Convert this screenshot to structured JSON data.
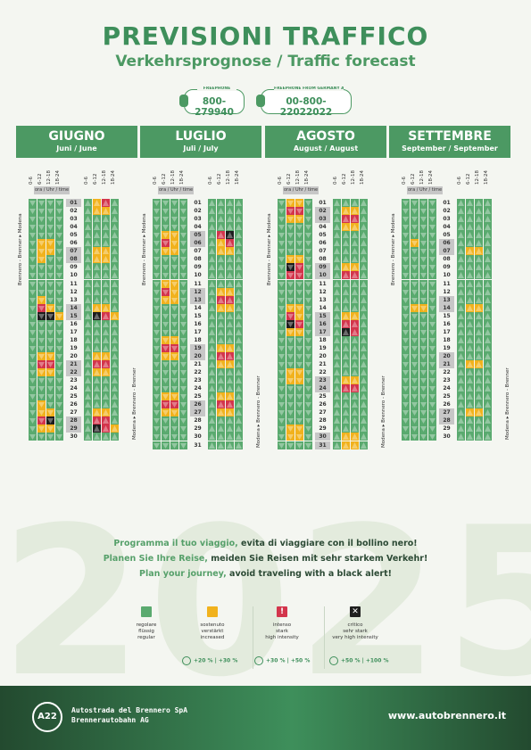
{
  "title": "PREVISIONI TRAFFICO",
  "subtitle": "Verkehrsprognose / Traffic forecast",
  "phones": [
    {
      "label": "FREEPHONE",
      "number": "800-279940"
    },
    {
      "label": "FREEPHONE FROM GERMANY AUSTRIA NETHERLANDS",
      "number": "00-800-22022022"
    }
  ],
  "watermark": "2025",
  "time_slots": [
    "0-6",
    "6-12",
    "12-18",
    "18-24"
  ],
  "ora_label": "ora / Uhr / time",
  "direction_south": "Brennero - Brenner ▸ Modena",
  "direction_north": "Modena ▸ Brennero - Brenner",
  "months": [
    {
      "name": "GIUGNO",
      "sub": "Juni / June",
      "highlight": [
        1,
        7,
        8,
        14,
        15,
        21,
        22,
        28,
        29
      ],
      "south": [
        "gggg",
        "gggg",
        "gggg",
        "gggg",
        "gggg",
        "gyyg",
        "gyyg",
        "gygg",
        "gggg",
        "gggg",
        "gggg",
        "gggg",
        "gygg",
        "gryg",
        "gbby",
        "gggg",
        "gggg",
        "gggg",
        "gggg",
        "gyyg",
        "grrg",
        "gyyg",
        "gggg",
        "gggg",
        "gggg",
        "gygg",
        "gyyg",
        "grbg",
        "gyyg",
        "gggg"
      ],
      "north": [
        "gyrg",
        "gyyg",
        "gggg",
        "gggg",
        "gggg",
        "gggg",
        "gyyg",
        "gyyg",
        "gggg",
        "gggg",
        "gggg",
        "gggg",
        "gggg",
        "gyyg",
        "gbry",
        "gggg",
        "gggg",
        "gggg",
        "gggg",
        "gyyg",
        "grrg",
        "gyyg",
        "gggg",
        "gggg",
        "gggg",
        "gggg",
        "gyyg",
        "grrg",
        "gbry",
        "gggg"
      ]
    },
    {
      "name": "LUGLIO",
      "sub": "Juli / July",
      "highlight": [
        5,
        6,
        12,
        13,
        19,
        20,
        26,
        27
      ],
      "south": [
        "gggg",
        "gggg",
        "gggg",
        "gggg",
        "gyyg",
        "gryg",
        "gyyg",
        "gggg",
        "gggg",
        "gggg",
        "gyyg",
        "gryg",
        "gyyg",
        "gggg",
        "gggg",
        "gggg",
        "gggg",
        "gyyg",
        "grrg",
        "gyyg",
        "gggg",
        "gggg",
        "gggg",
        "gggg",
        "gyyg",
        "grrg",
        "gyyg",
        "gggg",
        "gggg",
        "gggg",
        "gggg"
      ],
      "north": [
        "gggg",
        "gggg",
        "gggg",
        "gggg",
        "grbg",
        "gyrg",
        "gyyg",
        "gggg",
        "gggg",
        "gggg",
        "gggg",
        "gyyg",
        "grrg",
        "gyyg",
        "gggg",
        "gggg",
        "gggg",
        "gggg",
        "gyyg",
        "grrg",
        "gyyg",
        "gggg",
        "gggg",
        "gggg",
        "gyyg",
        "grrg",
        "gyyg",
        "gggg",
        "gggg",
        "gggg",
        "gggg"
      ]
    },
    {
      "name": "AGOSTO",
      "sub": "August / August",
      "highlight": [
        2,
        3,
        9,
        10,
        15,
        16,
        17,
        23,
        24,
        30,
        31
      ],
      "south": [
        "gyyg",
        "grrg",
        "gyyg",
        "gggg",
        "gggg",
        "gggg",
        "gggg",
        "gyyg",
        "gbrg",
        "grrg",
        "gggg",
        "gggg",
        "gggg",
        "gyyg",
        "gryg",
        "gbrg",
        "gyyg",
        "gggg",
        "gggg",
        "gggg",
        "gggg",
        "gyyg",
        "gyyg",
        "gggg",
        "gggg",
        "gggg",
        "gggg",
        "gggg",
        "gyyg",
        "gyyg",
        "gggg"
      ],
      "north": [
        "gggg",
        "gyyg",
        "grrg",
        "gyyg",
        "gggg",
        "gggg",
        "gggg",
        "gggg",
        "gyyg",
        "grrg",
        "gggg",
        "gggg",
        "gggg",
        "gggg",
        "gyyg",
        "grrg",
        "gbrg",
        "gggg",
        "gggg",
        "gggg",
        "gggg",
        "gggg",
        "gyyg",
        "grrg",
        "gggg",
        "gggg",
        "gggg",
        "gggg",
        "gggg",
        "gyyg",
        "gyyg"
      ]
    },
    {
      "name": "SETTEMBRE",
      "sub": "September / September",
      "highlight": [
        6,
        7,
        13,
        14,
        20,
        21,
        27,
        28
      ],
      "south": [
        "gggg",
        "gggg",
        "gggg",
        "gggg",
        "gggg",
        "gygg",
        "gggg",
        "gggg",
        "gggg",
        "gggg",
        "gggg",
        "gggg",
        "gggg",
        "gyyg",
        "gggg",
        "gggg",
        "gggg",
        "gggg",
        "gggg",
        "gggg",
        "gggg",
        "gggg",
        "gggg",
        "gggg",
        "gggg",
        "gggg",
        "gggg",
        "gggg",
        "gggg",
        "gggg"
      ],
      "north": [
        "gggg",
        "gggg",
        "gggg",
        "gggg",
        "gggg",
        "gggg",
        "gyyg",
        "gggg",
        "gggg",
        "gggg",
        "gggg",
        "gggg",
        "gggg",
        "gyyg",
        "gggg",
        "gggg",
        "gggg",
        "gggg",
        "gggg",
        "gggg",
        "gyyg",
        "gggg",
        "gggg",
        "gggg",
        "gggg",
        "gggg",
        "gyyg",
        "gggg",
        "gggg",
        "gggg"
      ]
    }
  ],
  "messages": [
    {
      "highlight": "Programma il tuo viaggio,",
      "rest": " evita di viaggiare con il bollino nero!"
    },
    {
      "highlight": "Planen Sie Ihre Reise,",
      "rest": " meiden Sie Reisen mit sehr starkem Verkehr!"
    },
    {
      "highlight": "Plan your journey,",
      "rest": " avoid traveling with a black alert!"
    }
  ],
  "legend": [
    {
      "key": "regular",
      "color": "#5aaa6f",
      "symbol": "",
      "lines": [
        "regolare",
        "flüssig",
        "regular"
      ]
    },
    {
      "key": "increased",
      "color": "#f1b21d",
      "symbol": "",
      "lines": [
        "sostenuto",
        "verstärkt",
        "increased"
      ]
    },
    {
      "key": "high",
      "color": "#d3354c",
      "symbol": "!",
      "lines": [
        "intenso",
        "stark",
        "high intensity"
      ]
    },
    {
      "key": "critical",
      "color": "#1e1e1e",
      "symbol": "✕",
      "lines": [
        "critico",
        "sehr stark",
        "very high intensity"
      ]
    }
  ],
  "percent_labels": [
    "+20 %  |  +30 %",
    "+30 %  |  +50 %",
    "+50 %  |  +100 %"
  ],
  "colors": {
    "g": "#5aaa6f",
    "y": "#f1b21d",
    "r": "#d3354c",
    "b": "#1e1e1e",
    "brand": "#4c9963"
  },
  "footer": {
    "logo": "A22",
    "company_line1": "Autostrada del Brennero SpA",
    "company_line2": "Brennerautobahn AG",
    "website": "www.autobrennero.it"
  }
}
